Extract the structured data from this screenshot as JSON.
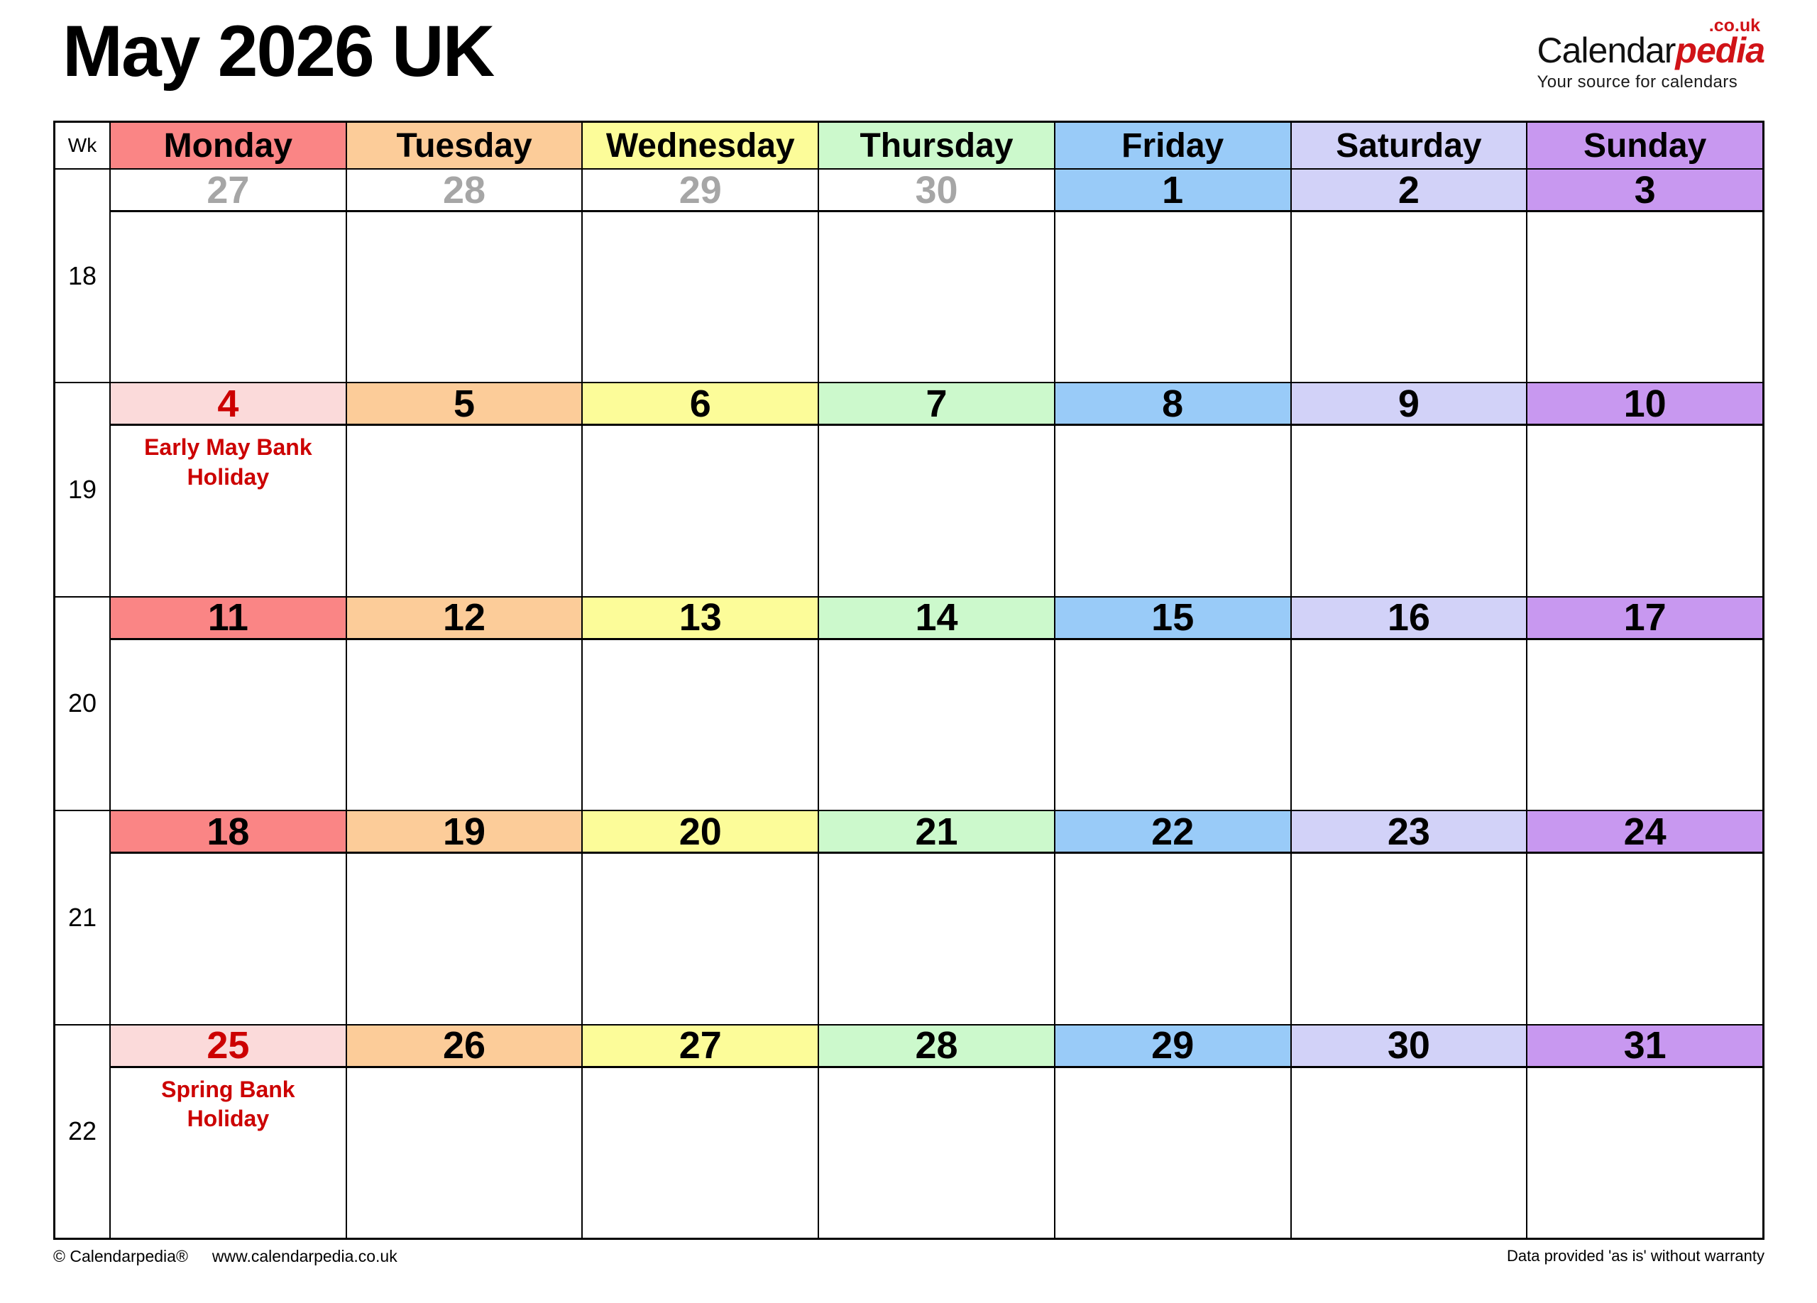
{
  "page": {
    "title": "May 2026 UK"
  },
  "logo": {
    "brand_black": "Calendar",
    "brand_red": "pedia",
    "domain": ".co.uk",
    "tagline": "Your source for calendars"
  },
  "calendar": {
    "wk_label": "Wk",
    "day_headers": [
      "Monday",
      "Tuesday",
      "Wednesday",
      "Thursday",
      "Friday",
      "Saturday",
      "Sunday"
    ],
    "weeks": [
      {
        "wk": "18",
        "days": [
          {
            "date": "27"
          },
          {
            "date": "28"
          },
          {
            "date": "29"
          },
          {
            "date": "30"
          },
          {
            "date": "1"
          },
          {
            "date": "2"
          },
          {
            "date": "3"
          }
        ]
      },
      {
        "wk": "19",
        "days": [
          {
            "date": "4",
            "holiday": "Early May Bank Holiday"
          },
          {
            "date": "5"
          },
          {
            "date": "6"
          },
          {
            "date": "7"
          },
          {
            "date": "8"
          },
          {
            "date": "9"
          },
          {
            "date": "10"
          }
        ]
      },
      {
        "wk": "20",
        "days": [
          {
            "date": "11"
          },
          {
            "date": "12"
          },
          {
            "date": "13"
          },
          {
            "date": "14"
          },
          {
            "date": "15"
          },
          {
            "date": "16"
          },
          {
            "date": "17"
          }
        ]
      },
      {
        "wk": "21",
        "days": [
          {
            "date": "18"
          },
          {
            "date": "19"
          },
          {
            "date": "20"
          },
          {
            "date": "21"
          },
          {
            "date": "22"
          },
          {
            "date": "23"
          },
          {
            "date": "24"
          }
        ]
      },
      {
        "wk": "22",
        "days": [
          {
            "date": "25",
            "holiday": "Spring Bank Holiday"
          },
          {
            "date": "26"
          },
          {
            "date": "27"
          },
          {
            "date": "28"
          },
          {
            "date": "29"
          },
          {
            "date": "30"
          },
          {
            "date": "31"
          }
        ]
      }
    ]
  },
  "footer": {
    "copyright": "© Calendarpedia®",
    "url": "www.calendarpedia.co.uk",
    "disclaimer": "Data provided 'as is' without warranty"
  },
  "colors": {
    "monday": "#FA8585",
    "tuesday": "#FCCC99",
    "wednesday": "#FCFC99",
    "thursday": "#CCF9CC",
    "friday": "#99CBF8",
    "saturday": "#D2D2F8",
    "sunday": "#C898F0",
    "holiday_bg": "#FBDADA",
    "holiday_text": "#CC0000",
    "prev_month_text": "#A6A6A6",
    "logo_red": "#D01317",
    "border": "#000000"
  }
}
